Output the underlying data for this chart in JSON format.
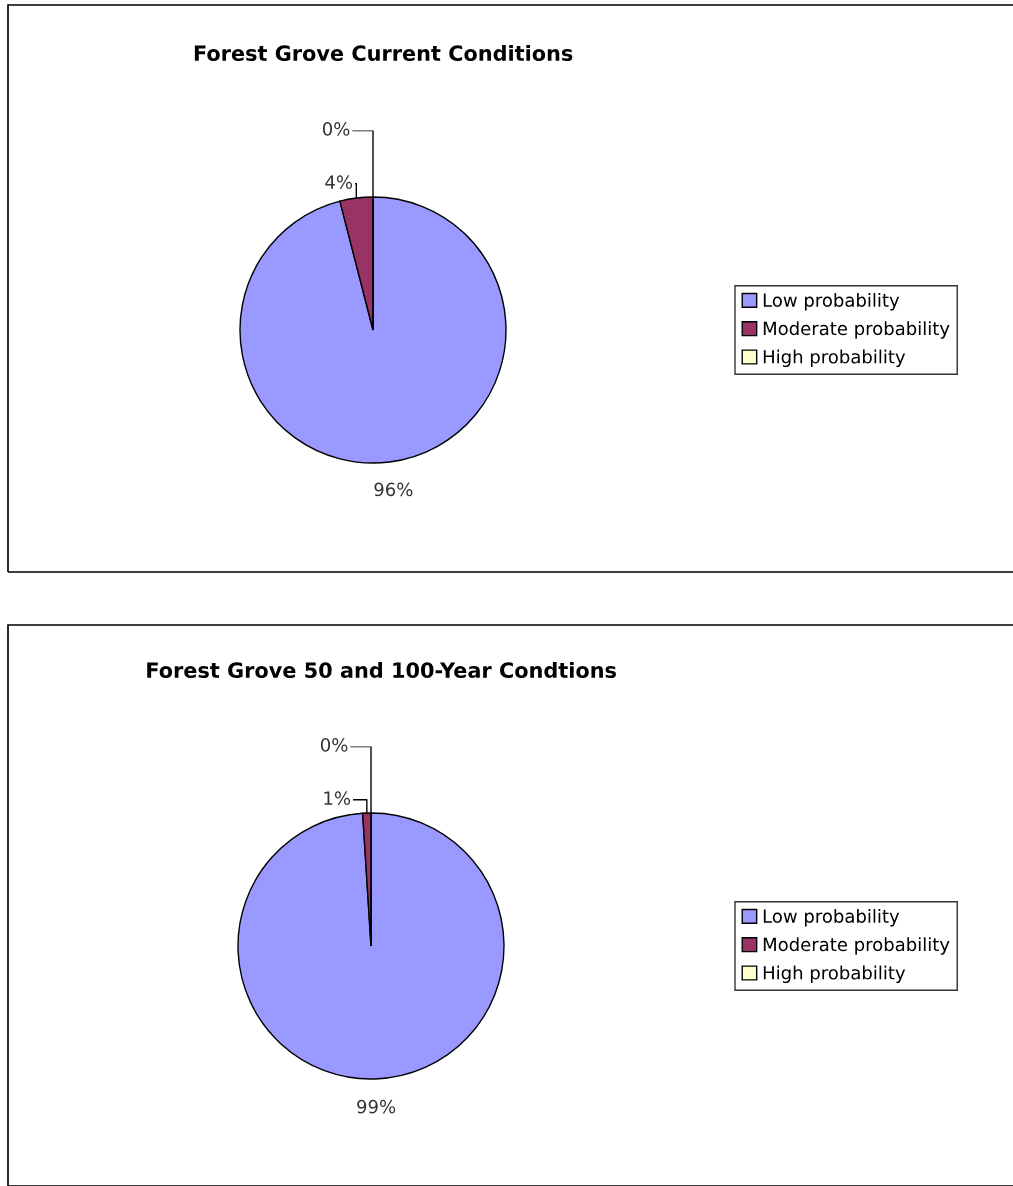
{
  "chart_data": [
    {
      "type": "pie",
      "title": "Forest Grove Current Conditions",
      "categories": [
        "Low probability",
        "Moderate probability",
        "High probability"
      ],
      "values": [
        96,
        4,
        0
      ],
      "colors": [
        "#9999ff",
        "#993366",
        "#ffffcc"
      ],
      "value_labels": [
        "96%",
        "4%",
        "0%"
      ],
      "legend": "right"
    },
    {
      "type": "pie",
      "title": "Forest Grove 50 and 100-Year Condtions",
      "categories": [
        "Low probability",
        "Moderate probability",
        "High probability"
      ],
      "values": [
        99,
        1,
        0
      ],
      "colors": [
        "#9999ff",
        "#993366",
        "#ffffcc"
      ],
      "value_labels": [
        "99%",
        "1%",
        "0%"
      ],
      "legend": "right"
    }
  ]
}
